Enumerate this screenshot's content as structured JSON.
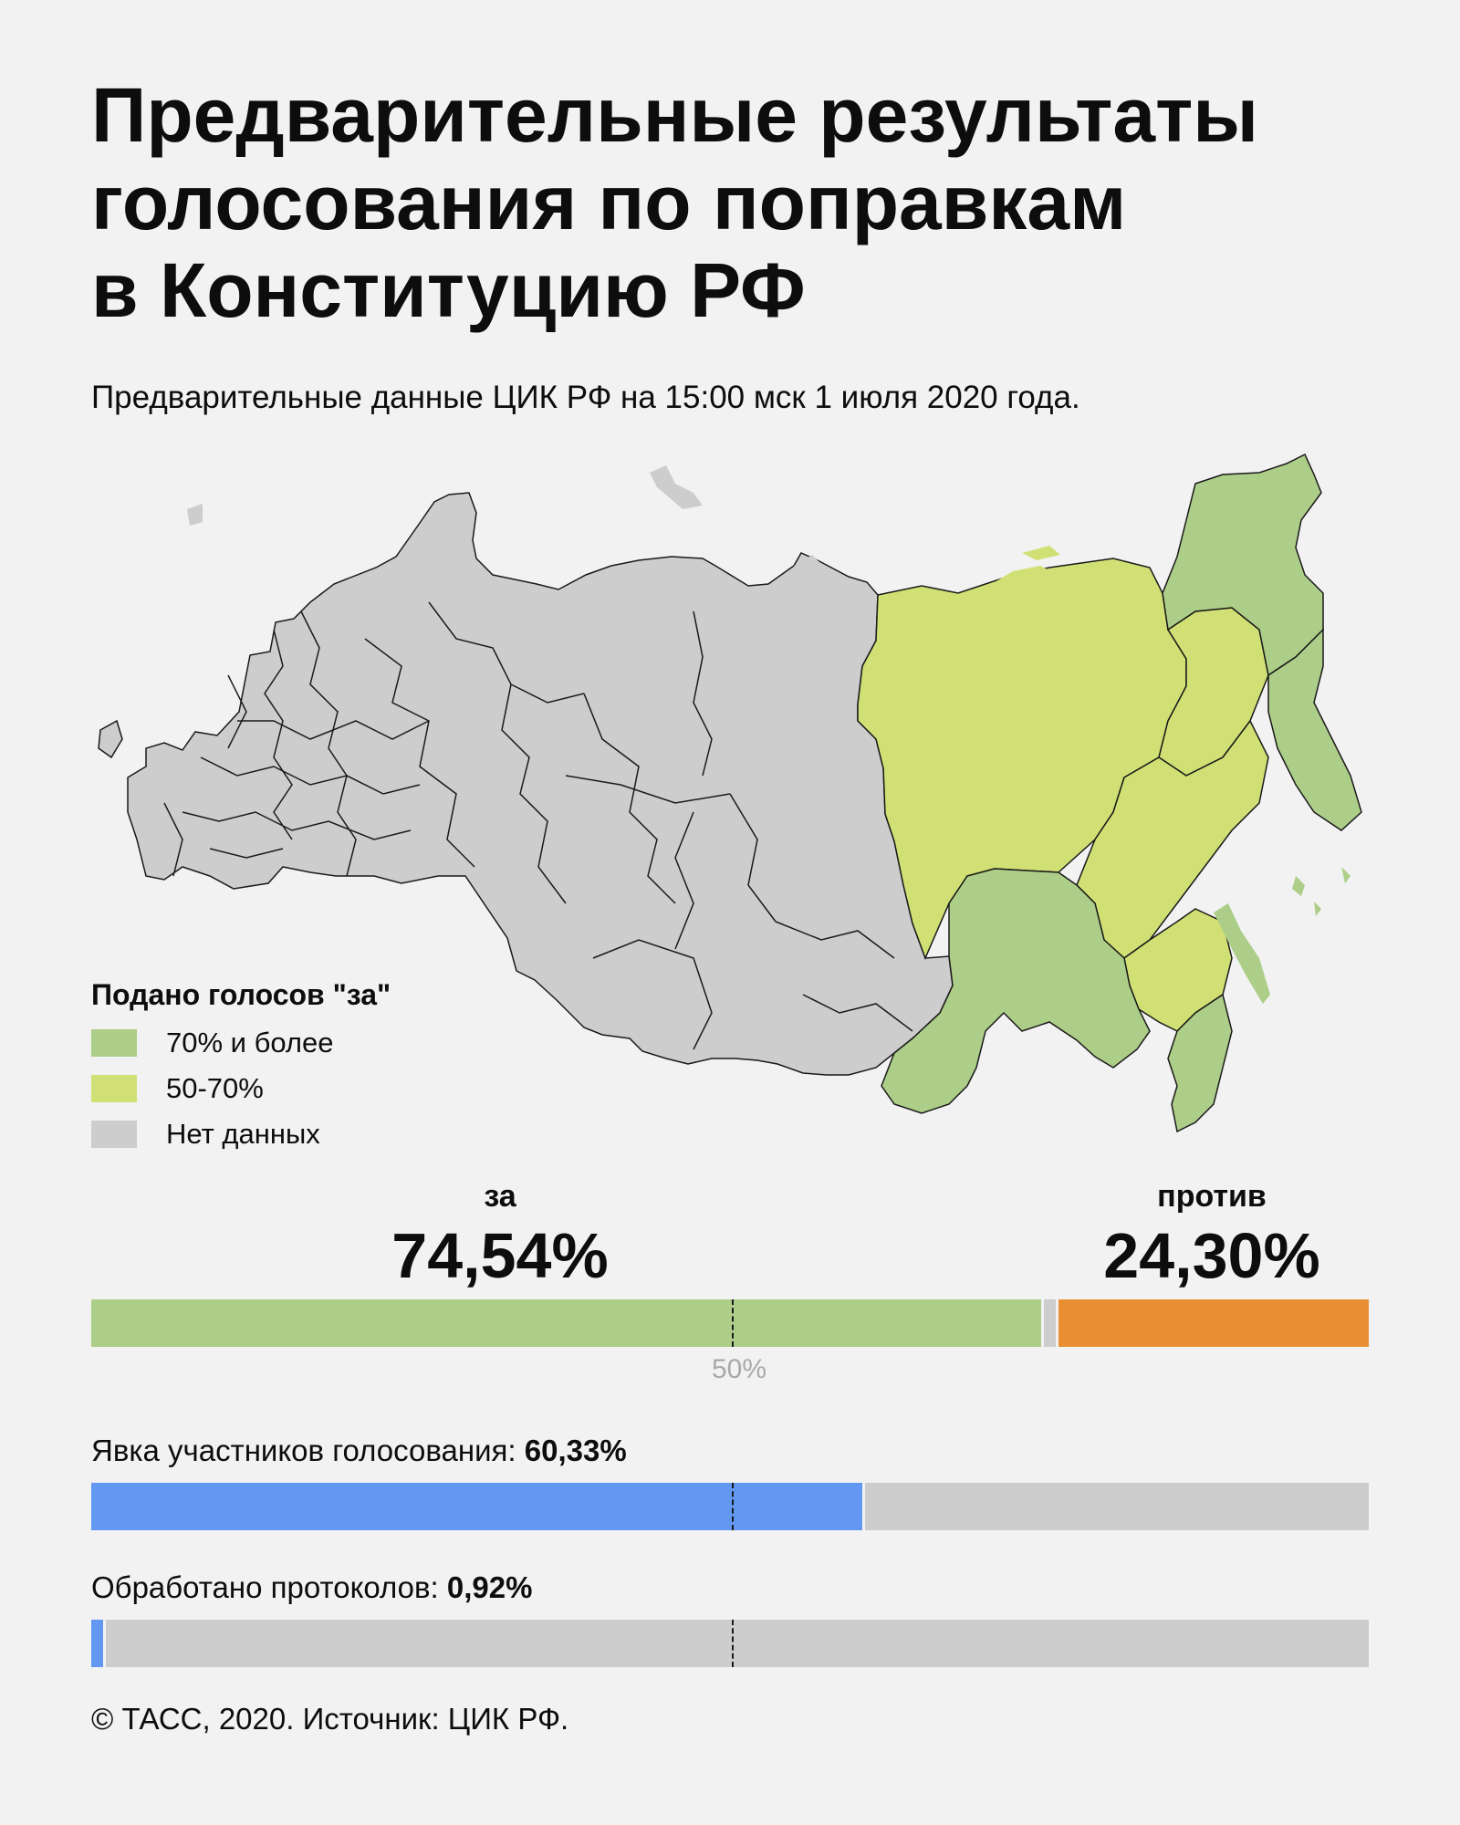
{
  "title": {
    "line1": "Предварительные результаты",
    "line2": "голосования по поправкам",
    "line3": "в Конституцию РФ"
  },
  "subtitle": "Предварительные данные ЦИК РФ на 15:00 мск 1 июля 2020 года.",
  "legend": {
    "title": "Подано голосов \"за\"",
    "items": [
      {
        "label": "70% и более",
        "color": "#adce88"
      },
      {
        "label": "50-70%",
        "color": "#d1e074"
      },
      {
        "label": "Нет данных",
        "color": "#cdcdcd"
      }
    ]
  },
  "results": {
    "for_label": "за",
    "for_value": "74,54%",
    "for_share": 74.54,
    "for_color": "#adce88",
    "against_label": "против",
    "against_value": "24,30%",
    "against_share": 24.3,
    "against_color": "#e98f32",
    "invalid_color": "#cdcdcd",
    "midpoint_label": "50%"
  },
  "turnout": {
    "label": "Явка участников голосования:",
    "value": "60,33%",
    "share": 60.33,
    "color": "#6398f2",
    "rest_color": "#cdcdcd"
  },
  "protocols": {
    "label": "Обработано протоколов:",
    "value": "0,92%",
    "share": 0.92,
    "color": "#6398f2",
    "rest_color": "#cdcdcd"
  },
  "footer": "© ТАСС, 2020. Источник: ЦИК РФ."
}
